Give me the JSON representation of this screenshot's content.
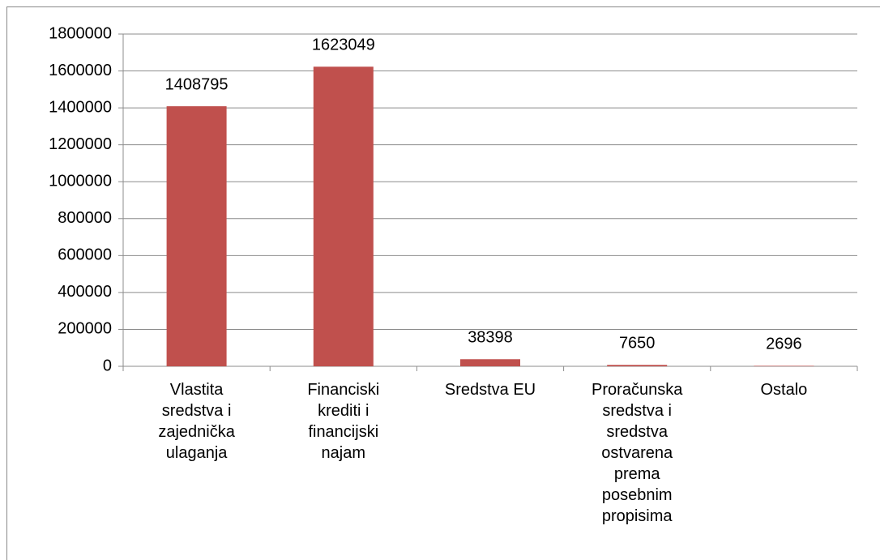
{
  "chart_data": {
    "type": "bar",
    "categories": [
      "Vlastita sredstva i zajednička ulaganja",
      "Financiski krediti i financijski najam",
      "Sredstva EU",
      "Proračunska sredstva i sredstva ostvarena prema posebnim propisima",
      "Ostalo"
    ],
    "values": [
      1408795,
      1623049,
      38398,
      7650,
      2696
    ],
    "color": "#c0504d",
    "ylim": [
      0,
      1800000
    ],
    "yticks": [
      0,
      200000,
      400000,
      600000,
      800000,
      1000000,
      1200000,
      1400000,
      1600000,
      1800000
    ],
    "grid": true
  }
}
